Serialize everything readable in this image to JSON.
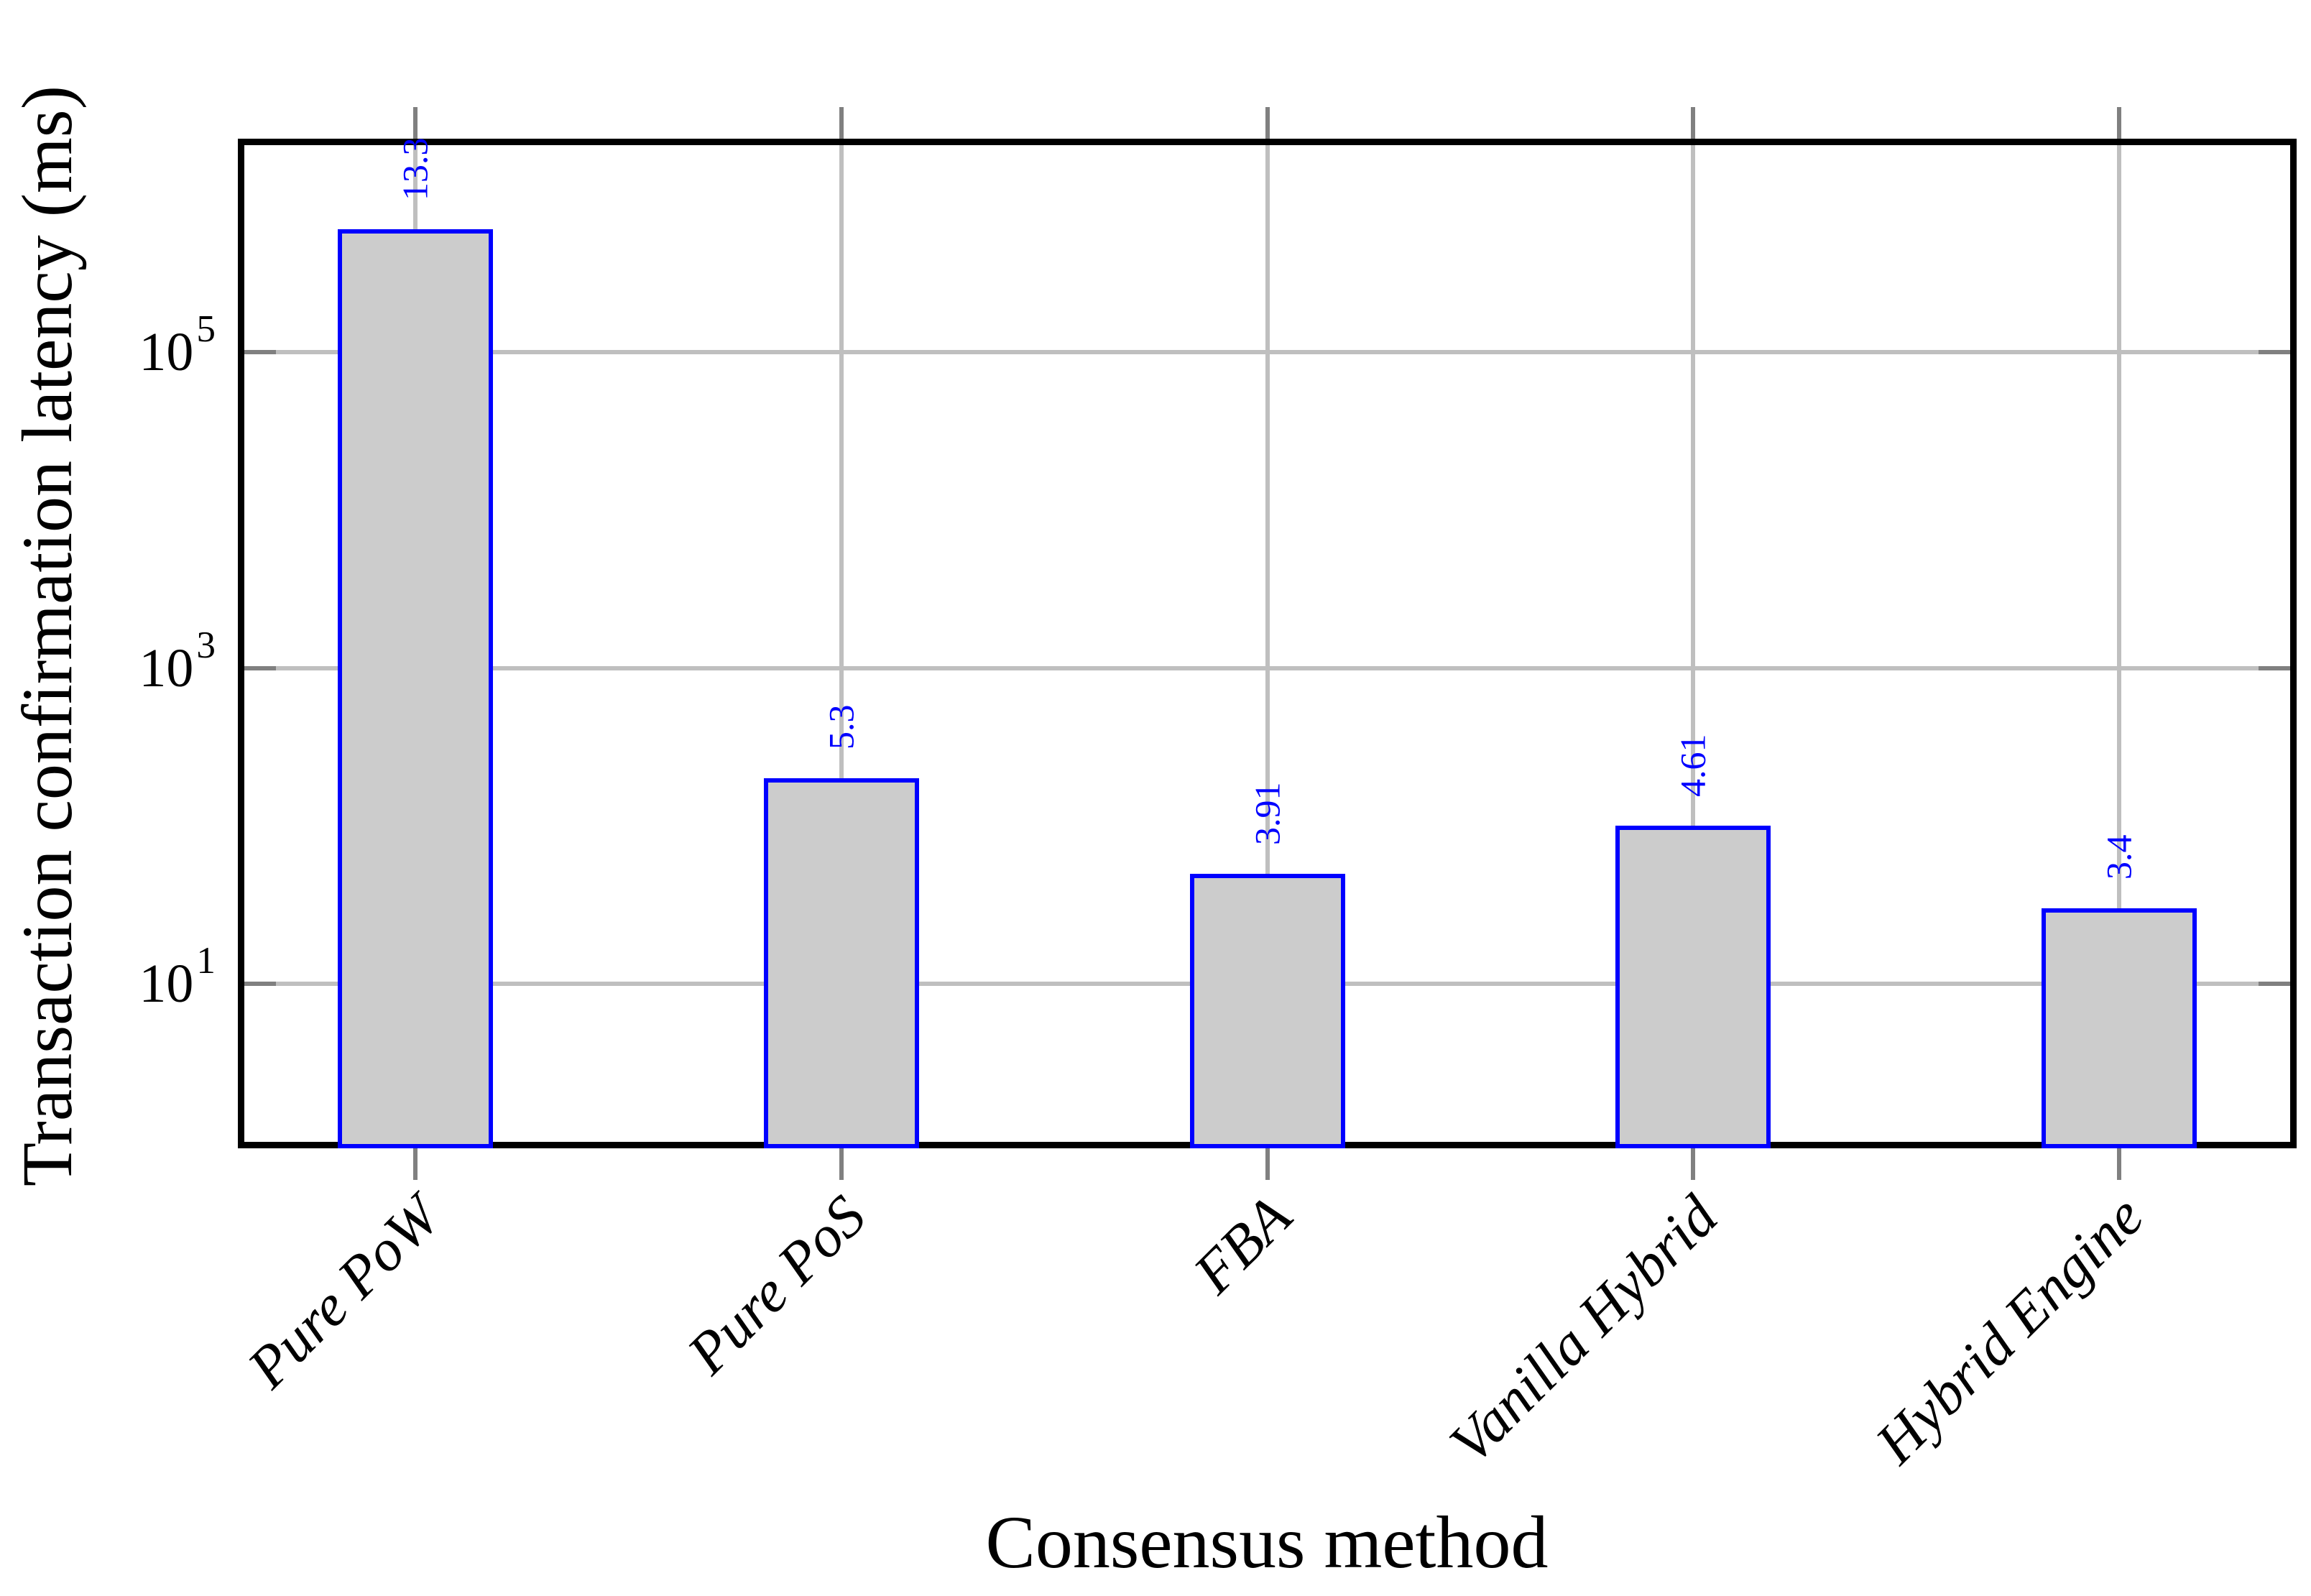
{
  "chart_data": {
    "type": "bar",
    "title": "",
    "xlabel": "Consensus method",
    "ylabel": "Transaction confirmation latency (ms)",
    "categories": [
      "Pure PoW",
      "Pure PoS",
      "FBA",
      "Vanilla Hybrid",
      "Hybrid Engine"
    ],
    "bar_labels": [
      "13.3",
      "5.3",
      "3.91",
      "4.61",
      "3.4"
    ],
    "values_ms": [
      597200,
      200.3,
      49.9,
      100.5,
      30.0
    ],
    "y_scale": "log10",
    "ylim": [
      1,
      2040000
    ],
    "y_ticks": [
      {
        "base": "10",
        "exp": "5",
        "value": 100000
      },
      {
        "base": "10",
        "exp": "3",
        "value": 1000
      },
      {
        "base": "10",
        "exp": "1",
        "value": 10
      }
    ],
    "grid": true,
    "legend": null,
    "colors": {
      "bar_fill": "#cccccc",
      "bar_border": "#0000ff",
      "value_label": "#0000ff",
      "grid": "#bfbfbf",
      "tick": "#808080",
      "frame": "#000000",
      "text": "#000000",
      "background": "#ffffff"
    }
  }
}
